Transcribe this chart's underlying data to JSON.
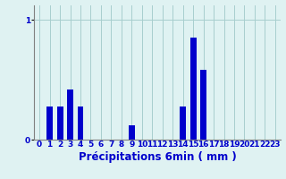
{
  "title": "",
  "xlabel": "Précipitations 6min ( mm )",
  "categories": [
    0,
    1,
    2,
    3,
    4,
    5,
    6,
    7,
    8,
    9,
    10,
    11,
    12,
    13,
    14,
    15,
    16,
    17,
    18,
    19,
    20,
    21,
    22,
    23
  ],
  "values": [
    0,
    0.28,
    0.28,
    0.42,
    0.28,
    0,
    0,
    0,
    0,
    0.12,
    0,
    0,
    0,
    0,
    0.28,
    0.85,
    0.58,
    0,
    0,
    0,
    0,
    0,
    0,
    0
  ],
  "bar_color": "#0000cc",
  "bg_color": "#dff2f2",
  "grid_color": "#a8cece",
  "ytick_value": 1.0,
  "ylim": [
    0,
    1.12
  ],
  "tick_color": "#0000cc",
  "axis_color": "#808080",
  "xlabel_color": "#0000cc",
  "tick_fontsize": 6.5,
  "xlabel_fontsize": 8.5
}
